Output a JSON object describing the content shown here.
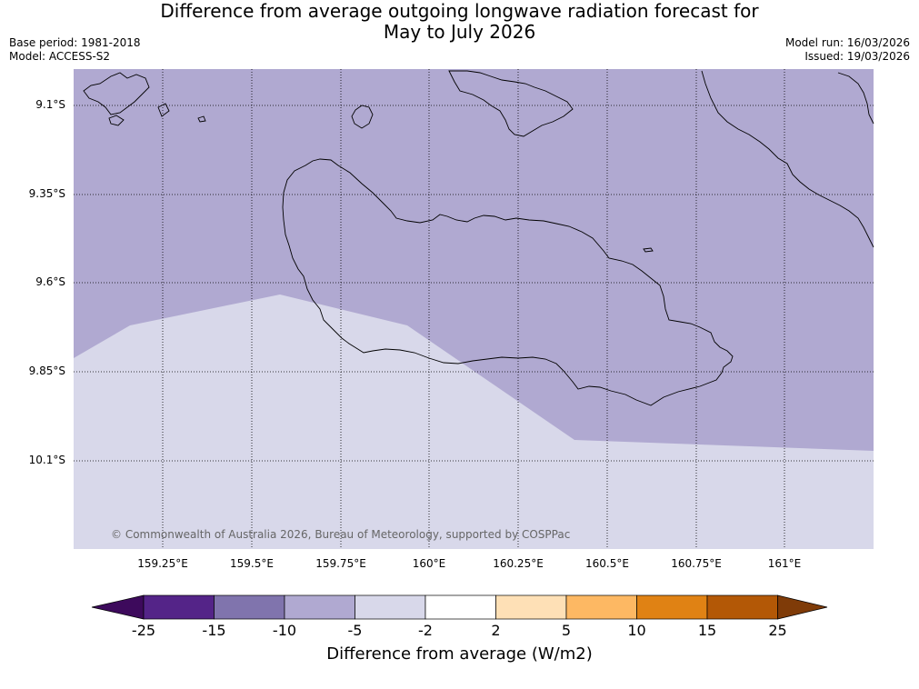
{
  "title_line1": "Difference from average outgoing longwave radiation forecast for",
  "title_line2": "May to July 2026",
  "meta": {
    "base_period": "Base period: 1981-2018",
    "model": "Model: ACCESS-S2",
    "model_run": "Model run: 16/03/2026",
    "issued": "Issued: 19/03/2026"
  },
  "map": {
    "latitudes": [
      "9.1°S",
      "9.35°S",
      "9.6°S",
      "9.85°S",
      "10.1°S"
    ],
    "longitudes": [
      "159.25°E",
      "159.5°E",
      "159.75°E",
      "160°E",
      "160.25°E",
      "160.5°E",
      "160.75°E",
      "161°E"
    ],
    "copyright": "© Commonwealth of Australia 2026, Bureau of Meteorology, supported by COSPPac",
    "region_colors": {
      "minus10_to_minus5": "#b0a9d1",
      "minus5_to_minus2": "#d8d8ea"
    }
  },
  "colorbar": {
    "ticks": [
      "-25",
      "-15",
      "-10",
      "-5",
      "-2",
      "2",
      "5",
      "10",
      "15",
      "25"
    ],
    "colors": [
      "#3d0a5c",
      "#542488",
      "#8074ad",
      "#b0a9d1",
      "#d8d8ea",
      "#ffffff",
      "#fee0b6",
      "#fdb863",
      "#e08214",
      "#b35806",
      "#7f3b08"
    ],
    "label": "Difference from average (W/m2)"
  }
}
